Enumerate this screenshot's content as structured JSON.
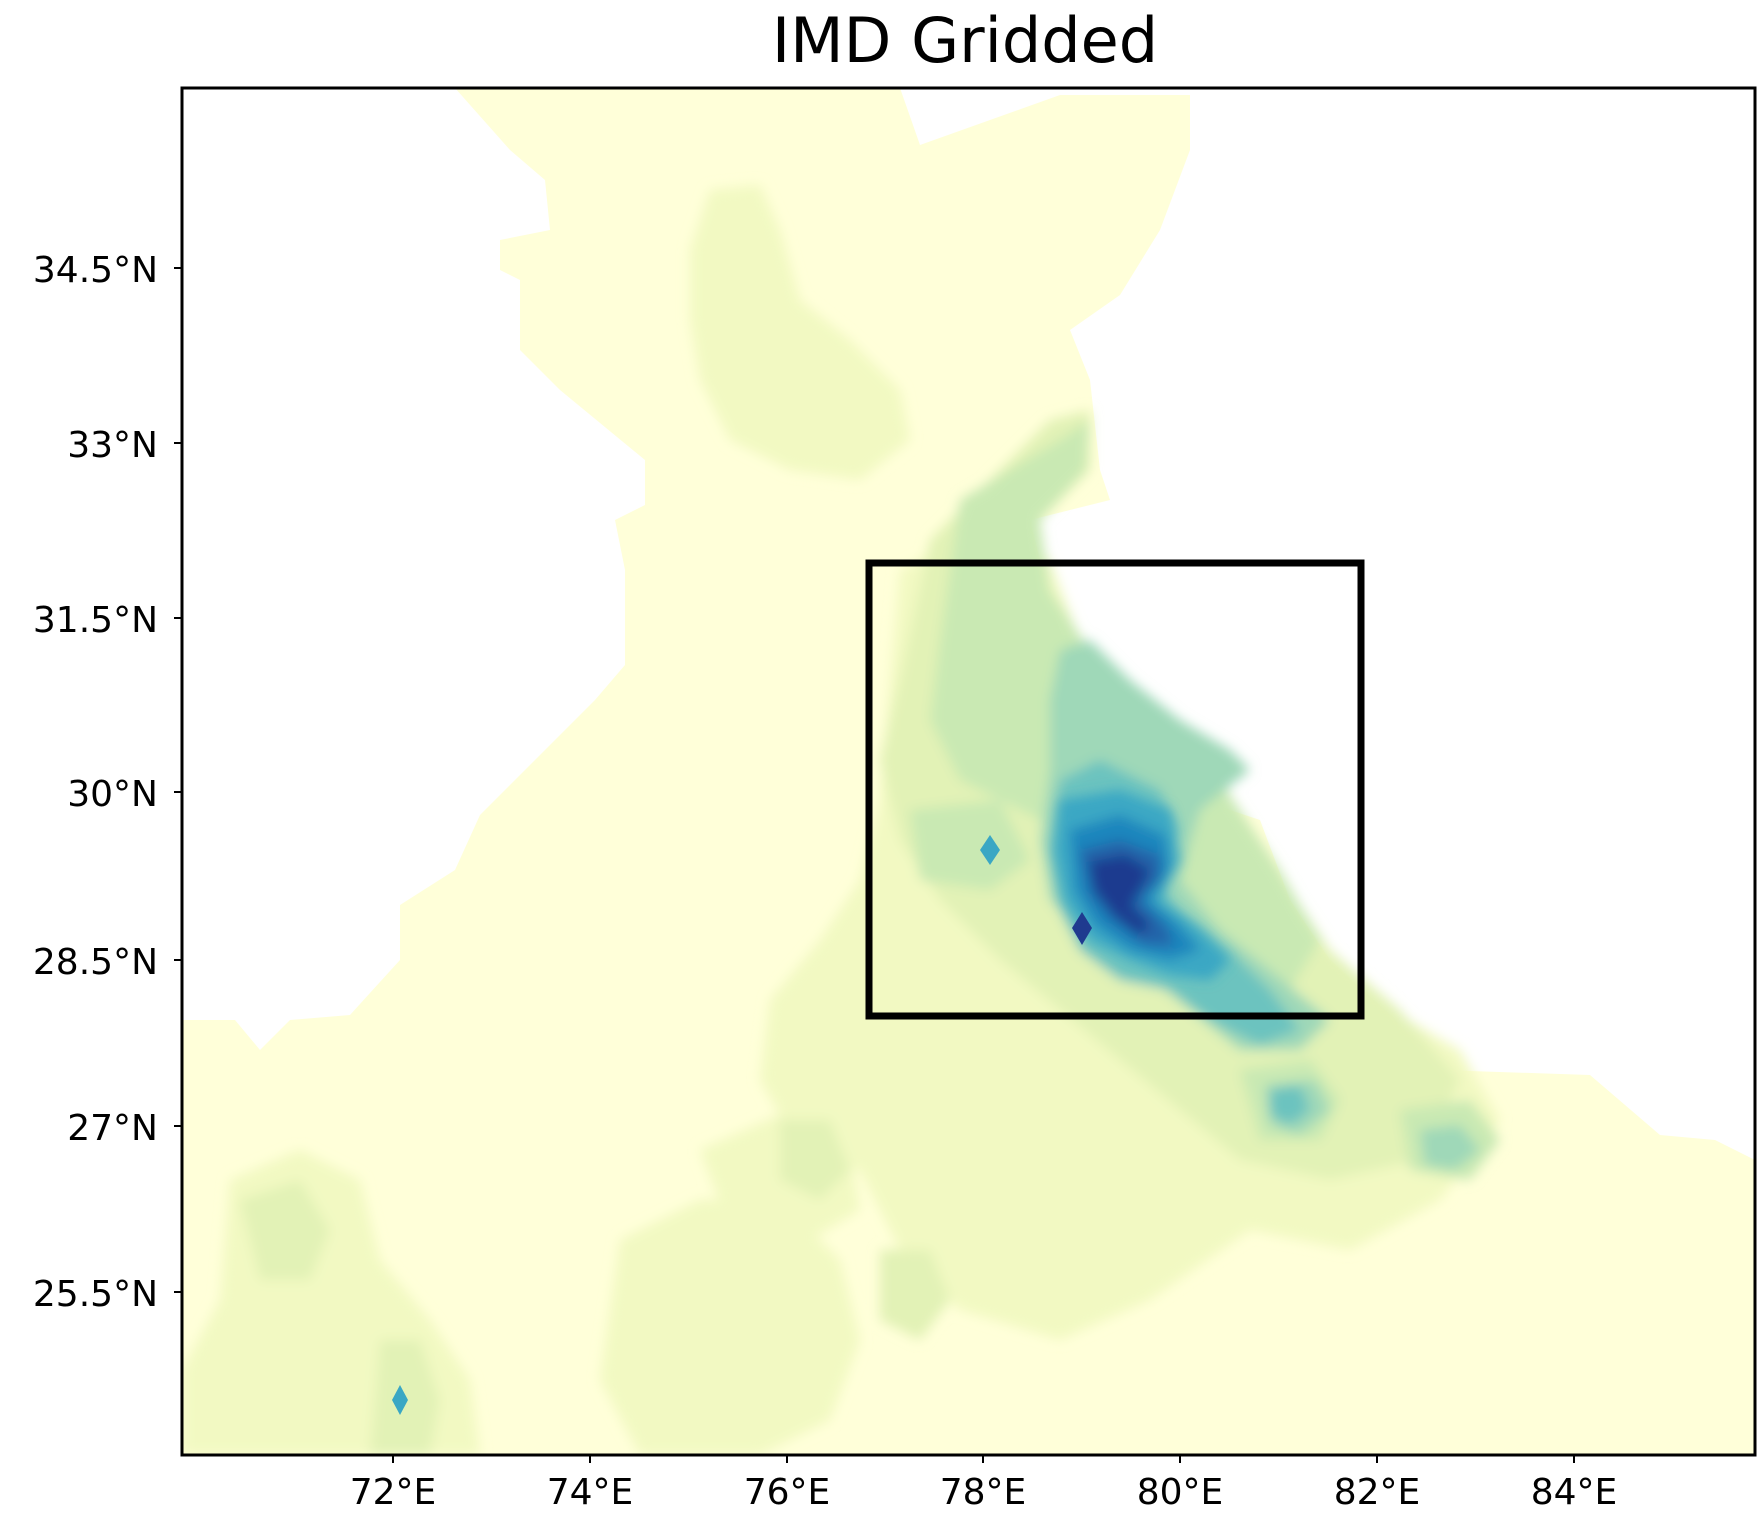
{
  "title": "IMD Gridded",
  "axes": {
    "x_ticks": [
      "72°E",
      "74°E",
      "76°E",
      "78°E",
      "80°E",
      "82°E",
      "84°E"
    ],
    "y_ticks": [
      "34.5°N",
      "33°N",
      "31.5°N",
      "30°N",
      "28.5°N",
      "27°N",
      "25.5°N"
    ]
  },
  "colors": {
    "level_1": "#ffffd9",
    "level_2": "#f2f9c2",
    "level_3": "#e2f2b6",
    "level_4": "#c9e9b3",
    "level_5": "#9fd8b8",
    "level_6": "#6cc3bf",
    "level_7": "#3aa7c4",
    "level_8": "#1d86bd",
    "level_9": "#2163a9",
    "level_10": "#1f3a8f",
    "box_outline": "#000000"
  },
  "study_region_box": {
    "lon_range": [
      "77°E",
      "82°E"
    ],
    "lat_range": [
      "28°N",
      "32°N"
    ]
  }
}
